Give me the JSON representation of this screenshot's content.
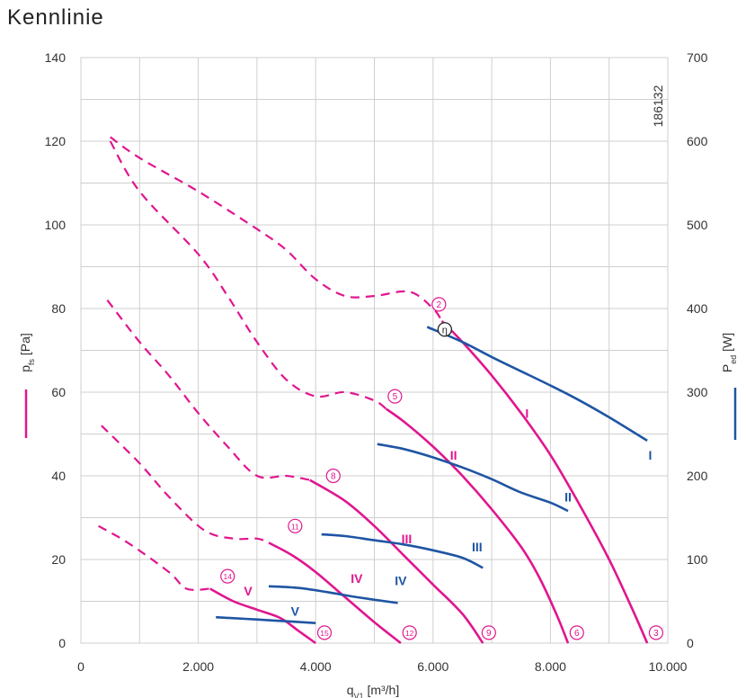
{
  "title": "Kennlinie",
  "chart_data": {
    "type": "line",
    "drawing_number": "186132",
    "xlabel": "q_v1 [m³/h]",
    "xlabel_main": "q",
    "xlabel_sub": "V1",
    "xlabel_unit": " [m³/h]",
    "ylabel_left": "p_fs [Pa]",
    "ylabel_left_main": "p",
    "ylabel_left_sub": "fs",
    "ylabel_left_unit": " [Pa]",
    "ylabel_right": "P_ed [W]",
    "ylabel_right_main": "P",
    "ylabel_right_sub": "ed",
    "ylabel_right_unit": " [W]",
    "xlim": [
      0,
      10000
    ],
    "ylim_left": [
      0,
      140
    ],
    "ylim_right": [
      0,
      700
    ],
    "x_ticks": [
      0,
      2000,
      4000,
      6000,
      8000,
      10000
    ],
    "x_tick_labels": [
      "0",
      "2.000",
      "4.000",
      "6.000",
      "8.000",
      "10.000"
    ],
    "y_left_ticks": [
      0,
      20,
      40,
      60,
      80,
      100,
      120,
      140
    ],
    "y_left_tick_labels": [
      "0",
      "20",
      "40",
      "60",
      "80",
      "100",
      "120",
      "140"
    ],
    "y_right_ticks": [
      0,
      100,
      200,
      300,
      400,
      500,
      600,
      700
    ],
    "y_right_tick_labels": [
      "0",
      "100",
      "200",
      "300",
      "400",
      "500",
      "600",
      "700"
    ],
    "grid": true,
    "pressure_color": "#e0168f",
    "power_color": "#1f55a3",
    "pressure_curves": [
      {
        "curve": "I",
        "dashed": [
          [
            500,
            121
          ],
          [
            1000,
            116
          ],
          [
            2000,
            108
          ],
          [
            3000,
            99
          ],
          [
            3500,
            94
          ],
          [
            4000,
            87
          ],
          [
            4500,
            83
          ],
          [
            5000,
            83
          ],
          [
            5600,
            84
          ],
          [
            6000,
            80
          ],
          [
            6150,
            77
          ]
        ],
        "solid": [
          [
            6150,
            77
          ],
          [
            6500,
            72
          ],
          [
            7000,
            64
          ],
          [
            7500,
            55
          ],
          [
            8000,
            45
          ],
          [
            8500,
            33
          ],
          [
            9000,
            20
          ],
          [
            9400,
            8
          ],
          [
            9650,
            0
          ]
        ]
      },
      {
        "curve": "II",
        "dashed": [
          [
            500,
            120
          ],
          [
            1000,
            108
          ],
          [
            2000,
            93
          ],
          [
            2500,
            83
          ],
          [
            3000,
            72
          ],
          [
            3500,
            63
          ],
          [
            4000,
            59
          ],
          [
            4500,
            60
          ],
          [
            5000,
            58
          ],
          [
            5200,
            56
          ]
        ],
        "solid": [
          [
            5200,
            56
          ],
          [
            5500,
            53
          ],
          [
            6000,
            47
          ],
          [
            6500,
            40
          ],
          [
            7000,
            32
          ],
          [
            7500,
            23
          ],
          [
            7800,
            16
          ],
          [
            8100,
            7
          ],
          [
            8300,
            0
          ]
        ]
      },
      {
        "curve": "III",
        "dashed": [
          [
            450,
            82
          ],
          [
            1000,
            72
          ],
          [
            1500,
            64
          ],
          [
            2000,
            55
          ],
          [
            2500,
            47
          ],
          [
            3000,
            40
          ],
          [
            3500,
            40
          ],
          [
            3900,
            39
          ]
        ],
        "solid": [
          [
            3900,
            39
          ],
          [
            4500,
            34
          ],
          [
            5000,
            28
          ],
          [
            5500,
            21
          ],
          [
            6000,
            14
          ],
          [
            6500,
            7
          ],
          [
            6850,
            0
          ]
        ]
      },
      {
        "curve": "IV",
        "dashed": [
          [
            350,
            52
          ],
          [
            1000,
            43
          ],
          [
            1500,
            35
          ],
          [
            2100,
            27
          ],
          [
            2600,
            25
          ],
          [
            3000,
            25
          ],
          [
            3200,
            24
          ]
        ],
        "solid": [
          [
            3200,
            24
          ],
          [
            3600,
            21
          ],
          [
            4000,
            17
          ],
          [
            4500,
            11
          ],
          [
            5000,
            5
          ],
          [
            5450,
            0
          ]
        ]
      },
      {
        "curve": "V",
        "dashed": [
          [
            300,
            28
          ],
          [
            800,
            24
          ],
          [
            1500,
            17
          ],
          [
            1800,
            13
          ],
          [
            2200,
            13
          ]
        ],
        "solid": [
          [
            2200,
            13
          ],
          [
            2600,
            10
          ],
          [
            3000,
            8
          ],
          [
            3400,
            6
          ],
          [
            3700,
            3
          ],
          [
            4000,
            0
          ]
        ]
      }
    ],
    "power_curves": [
      {
        "curve": "I",
        "points": [
          [
            5900,
            378
          ],
          [
            6500,
            360
          ],
          [
            7000,
            342
          ],
          [
            7500,
            325
          ],
          [
            8000,
            308
          ],
          [
            8500,
            290
          ],
          [
            9000,
            270
          ],
          [
            9650,
            242
          ]
        ]
      },
      {
        "curve": "II",
        "points": [
          [
            5050,
            238
          ],
          [
            5500,
            232
          ],
          [
            6000,
            222
          ],
          [
            6500,
            210
          ],
          [
            7000,
            196
          ],
          [
            7500,
            180
          ],
          [
            8000,
            168
          ],
          [
            8300,
            158
          ]
        ]
      },
      {
        "curve": "III",
        "points": [
          [
            4100,
            130
          ],
          [
            4500,
            128
          ],
          [
            5000,
            123
          ],
          [
            5500,
            118
          ],
          [
            6000,
            111
          ],
          [
            6500,
            102
          ],
          [
            6850,
            90
          ]
        ]
      },
      {
        "curve": "IV",
        "points": [
          [
            3200,
            68
          ],
          [
            3700,
            66
          ],
          [
            4200,
            61
          ],
          [
            4700,
            55
          ],
          [
            5400,
            48
          ]
        ]
      },
      {
        "curve": "V",
        "points": [
          [
            2300,
            31
          ],
          [
            2800,
            29
          ],
          [
            3300,
            27
          ],
          [
            4000,
            24
          ]
        ]
      }
    ],
    "curve_labels": [
      {
        "text": "I",
        "x": 7600,
        "y": 55,
        "type": "pressure"
      },
      {
        "text": "II",
        "x": 6350,
        "y": 45,
        "type": "pressure"
      },
      {
        "text": "III",
        "x": 5550,
        "y": 25,
        "type": "pressure"
      },
      {
        "text": "IV",
        "x": 4700,
        "y": 15.5,
        "type": "pressure"
      },
      {
        "text": "V",
        "x": 2850,
        "y": 12.5,
        "type": "pressure"
      },
      {
        "text": "I",
        "x": 9700,
        "y": 225,
        "type": "power"
      },
      {
        "text": "II",
        "x": 8300,
        "y": 175,
        "type": "power"
      },
      {
        "text": "III",
        "x": 6750,
        "y": 115,
        "type": "power"
      },
      {
        "text": "IV",
        "x": 5450,
        "y": 75,
        "type": "power"
      },
      {
        "text": "V",
        "x": 3650,
        "y": 38,
        "type": "power"
      }
    ],
    "operating_points": [
      {
        "label": "2",
        "x": 6100,
        "y": 81
      },
      {
        "label": "3",
        "x": 9800,
        "y": 2.5
      },
      {
        "label": "5",
        "x": 5350,
        "y": 59
      },
      {
        "label": "6",
        "x": 8450,
        "y": 2.5
      },
      {
        "label": "8",
        "x": 4300,
        "y": 40
      },
      {
        "label": "9",
        "x": 6950,
        "y": 2.5
      },
      {
        "label": "11",
        "x": 3650,
        "y": 28
      },
      {
        "label": "12",
        "x": 5600,
        "y": 2.5
      },
      {
        "label": "14",
        "x": 2500,
        "y": 16
      },
      {
        "label": "15",
        "x": 4150,
        "y": 2.5
      }
    ],
    "efficiency_marker": {
      "label": "η",
      "x": 6200,
      "y": 75
    }
  }
}
